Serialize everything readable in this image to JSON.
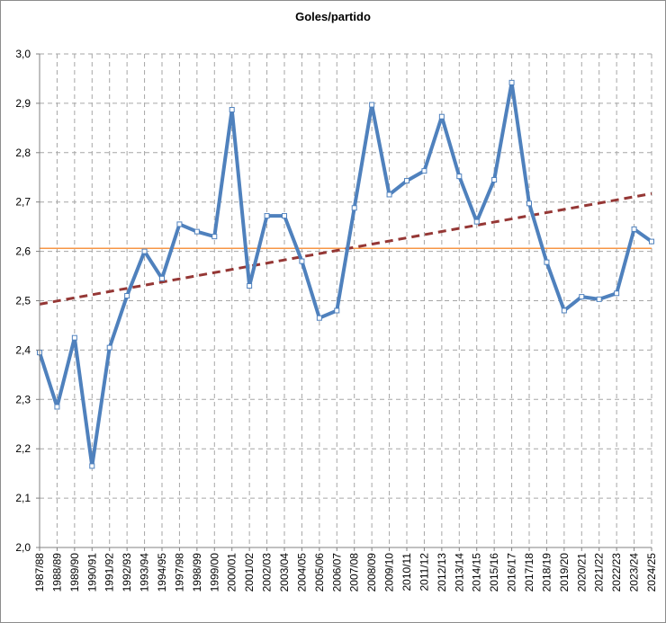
{
  "chart_data": {
    "type": "line",
    "title": "Goles/partido",
    "xlabel": "",
    "ylabel": "",
    "ylim": [
      2.0,
      3.0
    ],
    "y_ticks": [
      "2,0",
      "2,1",
      "2,2",
      "2,3",
      "2,4",
      "2,5",
      "2,6",
      "2,7",
      "2,8",
      "2,9",
      "3,0"
    ],
    "grid": true,
    "categories": [
      "1987/88",
      "1988/89",
      "1989/90",
      "1990/91",
      "1991/92",
      "1992/93",
      "1993/94",
      "1994/95",
      "1997/98",
      "1998/99",
      "1999/00",
      "2000/01",
      "2001/02",
      "2002/03",
      "2003/04",
      "2004/05",
      "2005/06",
      "2006/07",
      "2007/08",
      "2008/09",
      "2009/10",
      "2010/11",
      "2011/12",
      "2012/13",
      "2013/14",
      "2014/15",
      "2015/16",
      "2016/17",
      "2017/18",
      "2018/19",
      "2019/20",
      "2020/21",
      "2021/22",
      "2022/23",
      "2023/24",
      "2024/25"
    ],
    "series": [
      {
        "values": [
          2.395,
          2.285,
          2.425,
          2.165,
          2.405,
          2.51,
          2.6,
          2.545,
          2.655,
          2.64,
          2.63,
          2.887,
          2.53,
          2.672,
          2.672,
          2.58,
          2.465,
          2.48,
          2.688,
          2.897,
          2.715,
          2.743,
          2.763,
          2.873,
          2.752,
          2.66,
          2.745,
          2.942,
          2.697,
          2.578,
          2.48,
          2.508,
          2.503,
          2.515,
          2.645,
          2.62
        ],
        "color": "#4f81bd"
      }
    ],
    "average_line": {
      "value": 2.606,
      "color": "#f79646"
    },
    "trend_line": {
      "start": 2.493,
      "end": 2.717,
      "color": "#953735",
      "style": "dashed"
    }
  }
}
